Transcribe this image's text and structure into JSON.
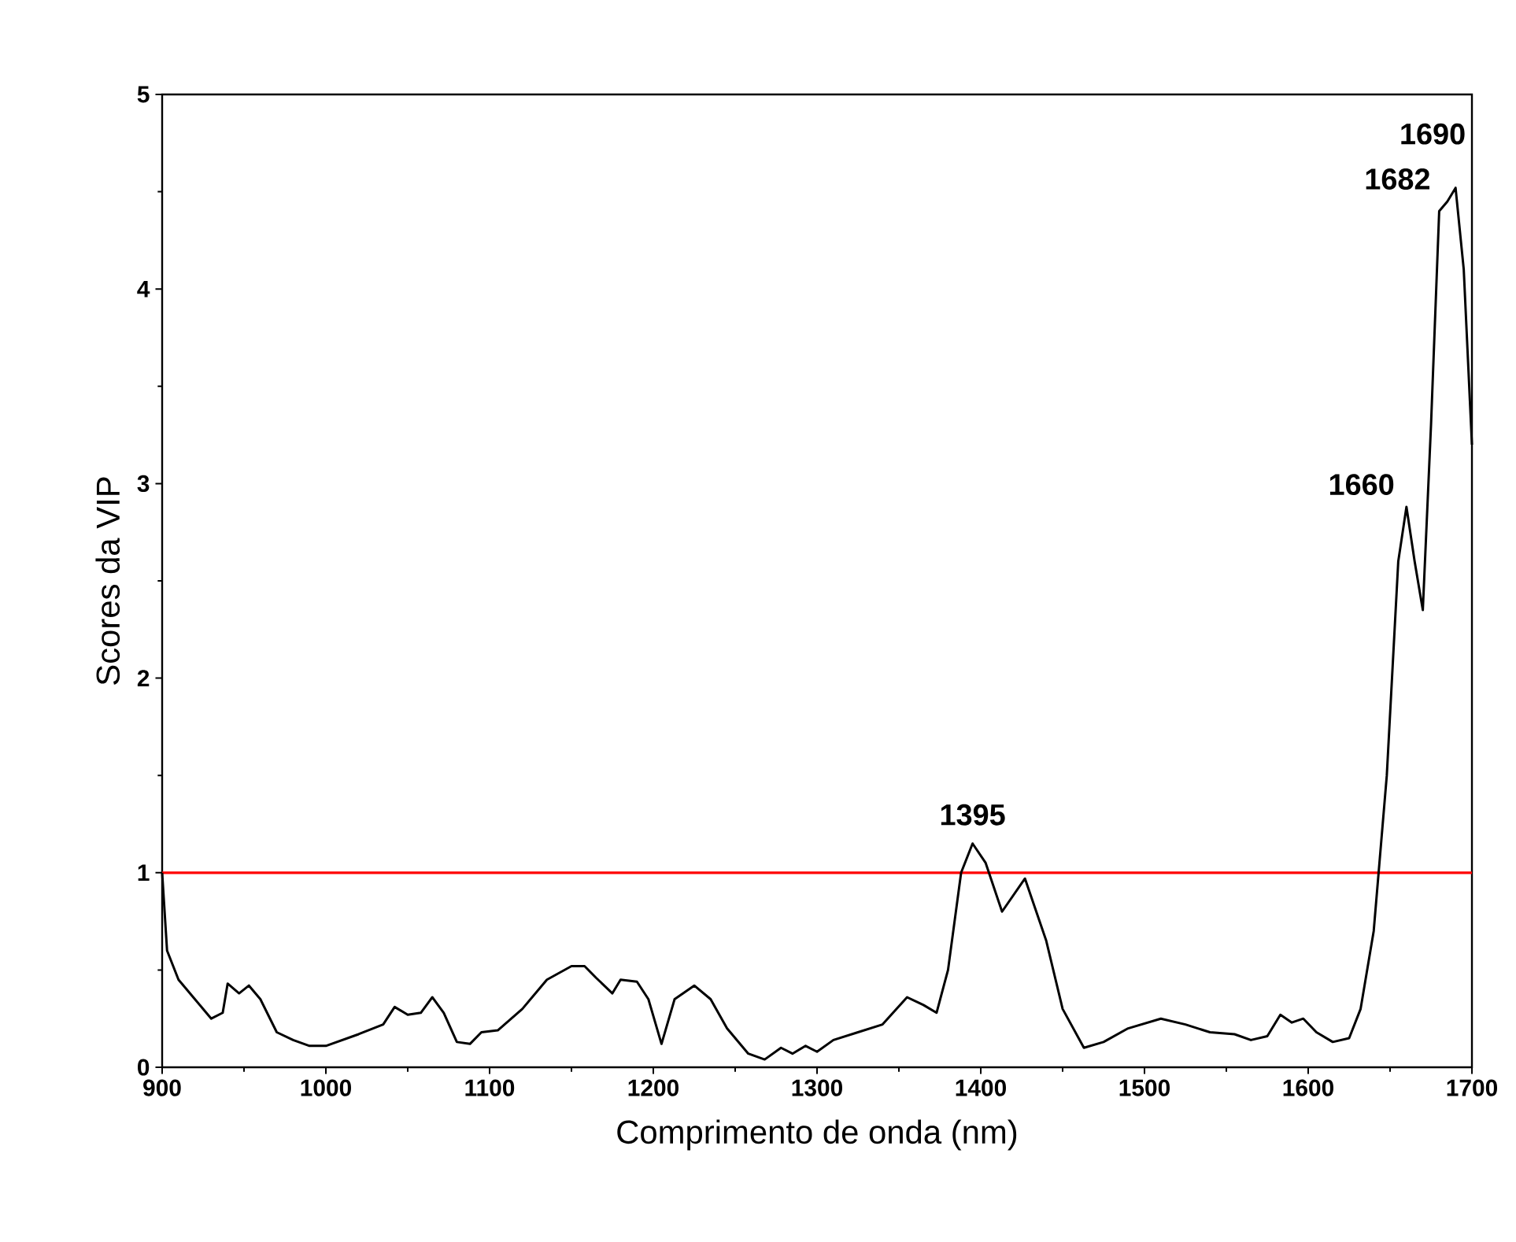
{
  "chart_data": {
    "type": "line",
    "xlabel": "Comprimento de onda (nm)",
    "ylabel": "Scores da VIP",
    "xlim": [
      900,
      1700
    ],
    "xticks": [
      900,
      1000,
      1100,
      1200,
      1300,
      1400,
      1500,
      1600,
      1700
    ],
    "ylim": [
      0,
      5
    ],
    "yticks": [
      0,
      1,
      2,
      3,
      4,
      5
    ],
    "grid": false,
    "series": [
      {
        "color": "#000000",
        "x": [
          900,
          903,
          910,
          920,
          930,
          937,
          940,
          947,
          953,
          960,
          970,
          980,
          990,
          1000,
          1020,
          1035,
          1042,
          1050,
          1058,
          1065,
          1072,
          1080,
          1088,
          1095,
          1105,
          1120,
          1135,
          1150,
          1158,
          1165,
          1175,
          1180,
          1190,
          1197,
          1205,
          1213,
          1225,
          1235,
          1245,
          1258,
          1268,
          1278,
          1285,
          1293,
          1300,
          1310,
          1325,
          1340,
          1355,
          1365,
          1373,
          1380,
          1388,
          1395,
          1403,
          1413,
          1427,
          1440,
          1450,
          1463,
          1475,
          1490,
          1510,
          1525,
          1540,
          1555,
          1565,
          1575,
          1583,
          1590,
          1597,
          1605,
          1615,
          1625,
          1632,
          1640,
          1648,
          1655,
          1660,
          1665,
          1670,
          1675,
          1680,
          1685,
          1690,
          1695,
          1700
        ],
        "values": [
          1.0,
          0.6,
          0.45,
          0.35,
          0.25,
          0.28,
          0.43,
          0.38,
          0.42,
          0.35,
          0.18,
          0.14,
          0.11,
          0.11,
          0.17,
          0.22,
          0.31,
          0.27,
          0.28,
          0.36,
          0.28,
          0.13,
          0.12,
          0.18,
          0.19,
          0.3,
          0.45,
          0.52,
          0.52,
          0.46,
          0.38,
          0.45,
          0.44,
          0.35,
          0.12,
          0.35,
          0.42,
          0.35,
          0.2,
          0.07,
          0.04,
          0.1,
          0.07,
          0.11,
          0.08,
          0.14,
          0.18,
          0.22,
          0.36,
          0.32,
          0.28,
          0.5,
          1.0,
          1.15,
          1.05,
          0.8,
          0.97,
          0.65,
          0.3,
          0.1,
          0.13,
          0.2,
          0.25,
          0.22,
          0.18,
          0.17,
          0.14,
          0.16,
          0.27,
          0.23,
          0.25,
          0.18,
          0.13,
          0.15,
          0.3,
          0.7,
          1.5,
          2.6,
          2.88,
          2.6,
          2.35,
          3.3,
          4.4,
          4.45,
          4.52,
          4.1,
          3.2
        ]
      }
    ],
    "ref_lines": [
      {
        "axis": "y",
        "value": 1,
        "color": "#ff0000",
        "line_style": "solid"
      }
    ],
    "annotations": [
      {
        "text": "1395",
        "x": 1395,
        "y": 1.15
      },
      {
        "text": "1660",
        "x": 1660,
        "y": 2.88
      },
      {
        "text": "1682",
        "x": 1682,
        "y": 4.45
      },
      {
        "text": "1690",
        "x": 1690,
        "y": 4.52
      }
    ]
  }
}
